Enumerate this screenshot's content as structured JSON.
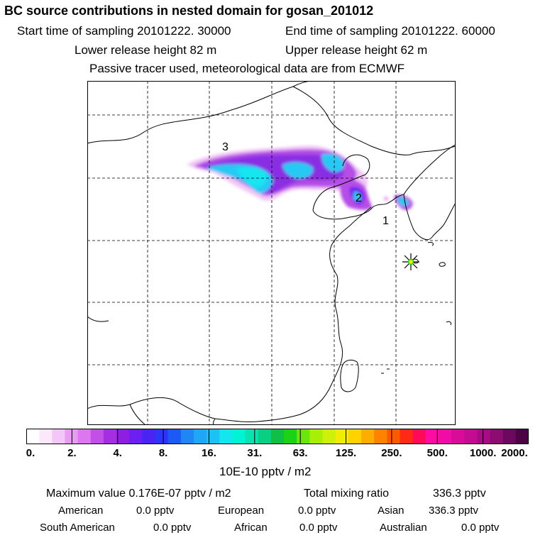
{
  "header": {
    "title": "BC  source contributions in nested domain for gosan_201012",
    "start_label": "Start time of sampling 20101222. 30000",
    "end_label": "End time of sampling 20101222. 60000",
    "lower_label": "Lower release height   82 m",
    "upper_label": "Upper release height   62 m",
    "info": "Passive tracer used, meteorological data are from ECMWF"
  },
  "map": {
    "region_labels": [
      "1",
      "2",
      "3"
    ],
    "receptor": "gosan-station-marker"
  },
  "colorbar": {
    "colors": [
      "#ffffff",
      "#fbe8fb",
      "#f2c6f6",
      "#e79cf2",
      "#dd77f0",
      "#c24fe8",
      "#a52ee3",
      "#8f1fe0",
      "#6b1ff0",
      "#4b24f4",
      "#2d36f7",
      "#1c5af6",
      "#1f86f4",
      "#20a6f6",
      "#1cc2f6",
      "#14e6f0",
      "#00f3d2",
      "#08e3b0",
      "#08cf82",
      "#10bf45",
      "#1cd216",
      "#6be60c",
      "#a8ef08",
      "#cff00a",
      "#f0ec08",
      "#ffd200",
      "#ffac00",
      "#ff8200",
      "#ff5a00",
      "#ff2a16",
      "#ff0a58",
      "#ff0da0",
      "#f00ca6",
      "#d80c98",
      "#c40c92",
      "#a80c84",
      "#8c0c72",
      "#6c085e",
      "#4c0444"
    ],
    "tick_labels": [
      "0.",
      "2.",
      "4.",
      "8.",
      "16.",
      "31.",
      "63.",
      "125.",
      "250.",
      "500.",
      "1000.",
      "2000."
    ],
    "units": "10E-10 pptv / m2"
  },
  "summary": {
    "max_label": "Maximum value  0.176E-07 pptv / m2",
    "total_label": "Total mixing ratio",
    "total_value": "336.3 pptv",
    "regions": [
      {
        "name": "American",
        "value": "0.0 pptv"
      },
      {
        "name": "European",
        "value": "0.0 pptv"
      },
      {
        "name": "Asian",
        "value": "336.3 pptv"
      },
      {
        "name": "South American",
        "value": "0.0 pptv"
      },
      {
        "name": "African",
        "value": "0.0 pptv"
      },
      {
        "name": "Australian",
        "value": "0.0 pptv"
      }
    ]
  }
}
